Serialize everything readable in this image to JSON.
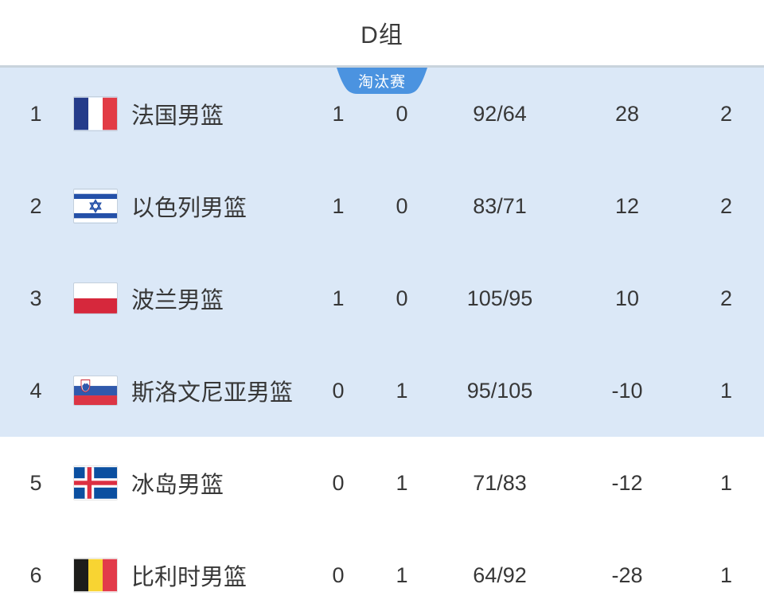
{
  "header": {
    "title": "D组"
  },
  "badge": {
    "label": "淘汰赛",
    "color": "#4b93e0"
  },
  "colors": {
    "highlight_bg": "#dbe8f7",
    "text": "#373737"
  },
  "standings": {
    "columns": [
      "rank",
      "flag",
      "team",
      "wins",
      "losses",
      "points_for_against",
      "point_diff",
      "points"
    ],
    "rows": [
      {
        "rank": "1",
        "flag": "france",
        "team": "法国男篮",
        "wins": "1",
        "losses": "0",
        "points_for_against": "92/64",
        "point_diff": "28",
        "points": "2",
        "highlighted": true
      },
      {
        "rank": "2",
        "flag": "israel",
        "team": "以色列男篮",
        "wins": "1",
        "losses": "0",
        "points_for_against": "83/71",
        "point_diff": "12",
        "points": "2",
        "highlighted": true
      },
      {
        "rank": "3",
        "flag": "poland",
        "team": "波兰男篮",
        "wins": "1",
        "losses": "0",
        "points_for_against": "105/95",
        "point_diff": "10",
        "points": "2",
        "highlighted": true
      },
      {
        "rank": "4",
        "flag": "slovenia",
        "team": "斯洛文尼亚男篮",
        "wins": "0",
        "losses": "1",
        "points_for_against": "95/105",
        "point_diff": "-10",
        "points": "1",
        "highlighted": true
      },
      {
        "rank": "5",
        "flag": "iceland",
        "team": "冰岛男篮",
        "wins": "0",
        "losses": "1",
        "points_for_against": "71/83",
        "point_diff": "-12",
        "points": "1",
        "highlighted": false
      },
      {
        "rank": "6",
        "flag": "belgium",
        "team": "比利时男篮",
        "wins": "0",
        "losses": "1",
        "points_for_against": "64/92",
        "point_diff": "-28",
        "points": "1",
        "highlighted": false
      }
    ]
  }
}
